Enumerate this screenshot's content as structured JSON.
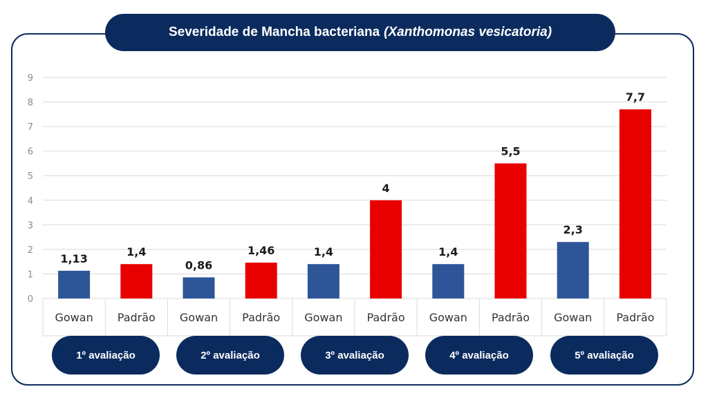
{
  "title": {
    "main": "Severidade de Mancha bacteriana",
    "italic": "(Xanthomonas vesicatoria)"
  },
  "colors": {
    "gowan": "#2e5597",
    "padrao": "#e80000",
    "navy": "#0b2b5e",
    "grid": "#d9d9d9"
  },
  "chart_data": {
    "type": "bar",
    "title": "Severidade de Mancha bacteriana (Xanthomonas vesicatoria)",
    "ylim": [
      0,
      9
    ],
    "yticks": [
      "0",
      "1",
      "2",
      "3",
      "4",
      "5",
      "6",
      "7",
      "8",
      "9"
    ],
    "grid": true,
    "groups": [
      "1º avaliação",
      "2º avaliação",
      "3º avaliação",
      "4º avaliação",
      "5º avaliação"
    ],
    "bars": [
      {
        "group": 0,
        "category": "Gowan",
        "value": 1.13,
        "label": "1,13",
        "series": "gowan"
      },
      {
        "group": 0,
        "category": "Padrão",
        "value": 1.4,
        "label": "1,4",
        "series": "padrao"
      },
      {
        "group": 1,
        "category": "Gowan",
        "value": 0.86,
        "label": "0,86",
        "series": "gowan"
      },
      {
        "group": 1,
        "category": "Padrão",
        "value": 1.46,
        "label": "1,46",
        "series": "padrao"
      },
      {
        "group": 2,
        "category": "Gowan",
        "value": 1.4,
        "label": "1,4",
        "series": "gowan"
      },
      {
        "group": 2,
        "category": "Padrão",
        "value": 4,
        "label": "4",
        "series": "padrao"
      },
      {
        "group": 3,
        "category": "Gowan",
        "value": 1.4,
        "label": "1,4",
        "series": "gowan"
      },
      {
        "group": 3,
        "category": "Padrão",
        "value": 5.5,
        "label": "5,5",
        "series": "padrao"
      },
      {
        "group": 4,
        "category": "Gowan",
        "value": 2.3,
        "label": "2,3",
        "series": "gowan"
      },
      {
        "group": 4,
        "category": "Padrão",
        "value": 7.7,
        "label": "7,7",
        "series": "padrao"
      }
    ]
  }
}
